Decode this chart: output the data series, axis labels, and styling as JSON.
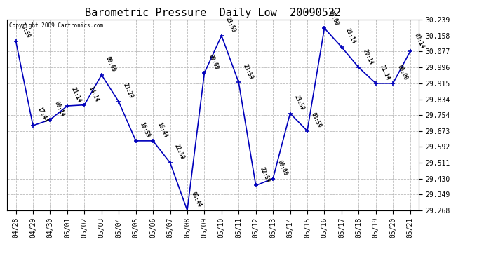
{
  "title": "Barometric Pressure  Daily Low  20090522",
  "copyright": "Copyright 2009 Cartronics.com",
  "x_labels": [
    "04/28",
    "04/29",
    "04/30",
    "05/01",
    "05/02",
    "05/03",
    "05/04",
    "05/05",
    "05/06",
    "05/07",
    "05/08",
    "05/09",
    "05/10",
    "05/11",
    "05/12",
    "05/13",
    "05/14",
    "05/15",
    "05/16",
    "05/17",
    "05/18",
    "05/19",
    "05/20",
    "05/21"
  ],
  "y_values": [
    30.13,
    29.7,
    29.73,
    29.8,
    29.805,
    29.958,
    29.822,
    29.622,
    29.622,
    29.511,
    29.268,
    29.968,
    30.158,
    29.92,
    29.395,
    29.43,
    29.762,
    29.673,
    30.196,
    30.1,
    29.996,
    29.915,
    29.915,
    30.077
  ],
  "point_labels": [
    "23:59",
    "17:44",
    "00:14",
    "21:14",
    "14:14",
    "00:00",
    "23:29",
    "16:59",
    "16:44",
    "22:59",
    "05:44",
    "00:00",
    "23:59",
    "23:59",
    "22:59",
    "00:00",
    "23:59",
    "03:59",
    "00:00",
    "21:14",
    "20:14",
    "21:14",
    "00:00",
    "03:14"
  ],
  "ylim_min": 29.268,
  "ylim_max": 30.239,
  "yticks": [
    29.268,
    29.349,
    29.43,
    29.511,
    29.592,
    29.673,
    29.754,
    29.834,
    29.915,
    29.996,
    30.077,
    30.158,
    30.239
  ],
  "line_color": "#0000bb",
  "marker_color": "#0000bb",
  "bg_color": "#ffffff",
  "grid_color": "#bbbbbb",
  "title_fontsize": 11,
  "tick_fontsize": 7,
  "point_label_fontsize": 5.5
}
